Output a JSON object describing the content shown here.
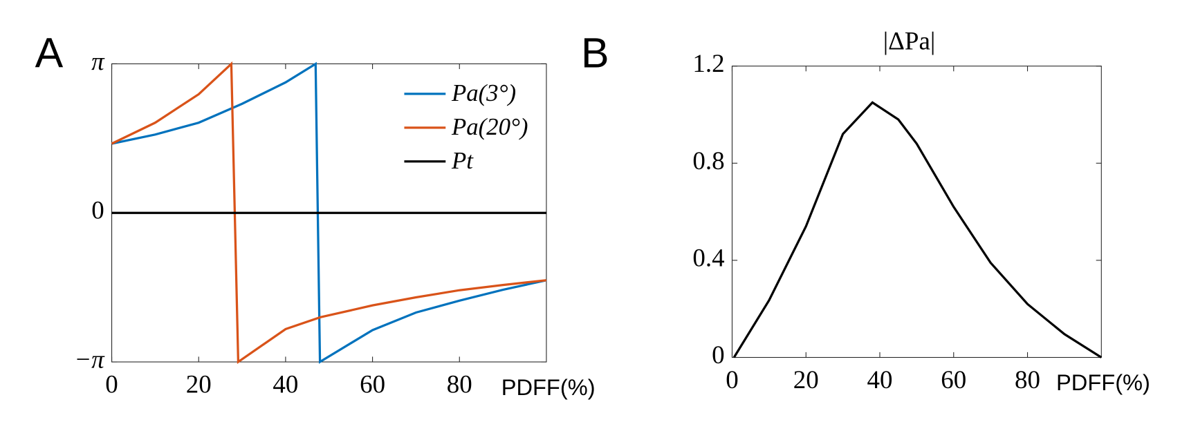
{
  "chart_data": [
    {
      "type": "line",
      "panel_label": "A",
      "x_label": "PDFF(%)",
      "xlim": [
        0,
        100
      ],
      "xticks": [
        0,
        20,
        40,
        60,
        80
      ],
      "ylim": [
        -3.1416,
        3.1416
      ],
      "yticks": [
        {
          "value": -3.1416,
          "label": "−π"
        },
        0,
        {
          "value": 3.1416,
          "label": "π"
        }
      ],
      "legend": "upper right",
      "series": [
        {
          "name": "Pa(3°)",
          "color": "#0072bd",
          "x": [
            0,
            10,
            20,
            30,
            40,
            46.9,
            47.9,
            60,
            70,
            80,
            90,
            100
          ],
          "values": [
            1.46,
            1.65,
            1.9,
            2.3,
            2.75,
            3.14,
            -3.14,
            -2.47,
            -2.1,
            -1.85,
            -1.62,
            -1.42
          ]
        },
        {
          "name": "Pa(20°)",
          "color": "#d95319",
          "x": [
            0,
            10,
            20,
            27.5,
            29.1,
            40,
            48,
            60,
            70,
            80,
            90,
            100
          ],
          "values": [
            1.46,
            1.9,
            2.5,
            3.14,
            -3.14,
            -2.45,
            -2.2,
            -1.95,
            -1.78,
            -1.63,
            -1.52,
            -1.42
          ]
        },
        {
          "name": "Pt",
          "color": "#000000",
          "x": [
            0,
            100
          ],
          "values": [
            0,
            0
          ]
        }
      ]
    },
    {
      "type": "line",
      "panel_label": "B",
      "title": "|ΔPa|",
      "x_label": "PDFF(%)",
      "xlim": [
        0,
        100
      ],
      "xticks": [
        0,
        20,
        40,
        60,
        80
      ],
      "ylim": [
        0,
        1.2
      ],
      "yticks": [
        0,
        0.4,
        0.8,
        1.2
      ],
      "series": [
        {
          "color": "#000000",
          "x": [
            0.5,
            10,
            20,
            30,
            38,
            45,
            50,
            60,
            70,
            80,
            90,
            100
          ],
          "values": [
            0,
            0.235,
            0.54,
            0.92,
            1.05,
            0.98,
            0.88,
            0.62,
            0.39,
            0.22,
            0.096,
            0
          ]
        }
      ]
    }
  ]
}
